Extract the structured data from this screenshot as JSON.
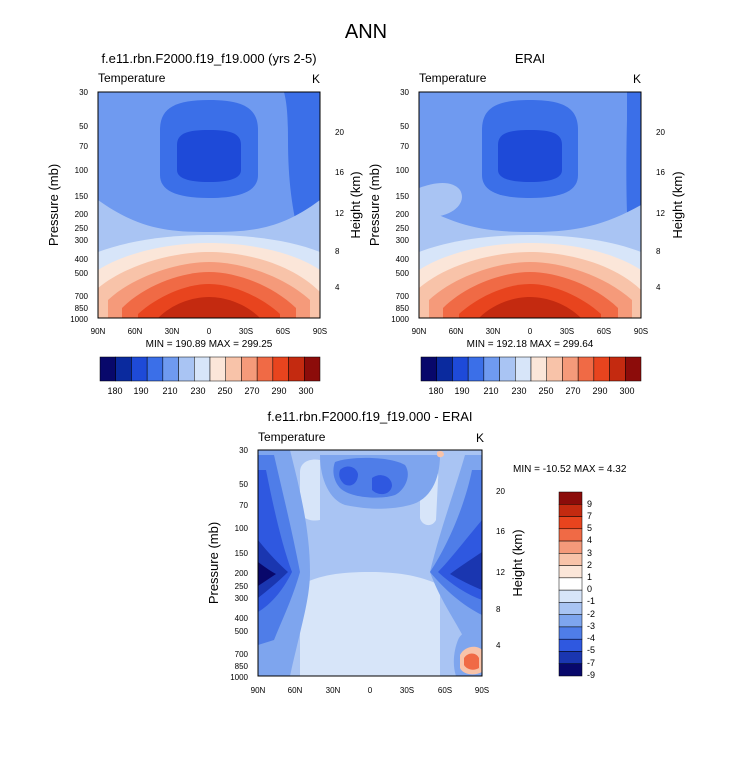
{
  "page_title": "ANN",
  "chart_data": [
    {
      "type": "heatmap",
      "title": "f.e11.rbn.F2000.f19_f19.000 (yrs 2-5)",
      "subtitle_left": "Temperature",
      "units": "K",
      "ylabel": "Pressure (mb)",
      "ylabel_right": "Height (km)",
      "x_ticks": [
        "90N",
        "60N",
        "30N",
        "0",
        "30S",
        "60S",
        "90S"
      ],
      "y_ticks": [
        "30",
        "50",
        "70",
        "100",
        "150",
        "200",
        "250",
        "300",
        "400",
        "500",
        "700",
        "850",
        "1000"
      ],
      "y_ticks_right": [
        "20",
        "16",
        "12",
        "8",
        "4"
      ],
      "stats_text": "MIN = 190.89  MAX = 299.25",
      "min": 190.89,
      "max": 299.25,
      "colorbar_labels": [
        "180",
        "190",
        "210",
        "230",
        "250",
        "270",
        "290",
        "300"
      ]
    },
    {
      "type": "heatmap",
      "title": "ERAI",
      "subtitle_left": "Temperature",
      "units": "K",
      "ylabel": "Pressure (mb)",
      "ylabel_right": "Height (km)",
      "x_ticks": [
        "90N",
        "60N",
        "30N",
        "0",
        "30S",
        "60S",
        "90S"
      ],
      "y_ticks": [
        "30",
        "50",
        "70",
        "100",
        "150",
        "200",
        "250",
        "300",
        "400",
        "500",
        "700",
        "850",
        "1000"
      ],
      "y_ticks_right": [
        "20",
        "16",
        "12",
        "8",
        "4"
      ],
      "stats_text": "MIN = 192.18  MAX = 299.64",
      "min": 192.18,
      "max": 299.64,
      "colorbar_labels": [
        "180",
        "190",
        "210",
        "230",
        "250",
        "270",
        "290",
        "300"
      ]
    },
    {
      "type": "heatmap",
      "title": "f.e11.rbn.F2000.f19_f19.000 - ERAI",
      "subtitle_left": "Temperature",
      "units": "K",
      "ylabel": "Pressure (mb)",
      "ylabel_right": "Height (km)",
      "x_ticks": [
        "90N",
        "60N",
        "30N",
        "0",
        "30S",
        "60S",
        "90S"
      ],
      "y_ticks": [
        "30",
        "50",
        "70",
        "100",
        "150",
        "200",
        "250",
        "300",
        "400",
        "500",
        "700",
        "850",
        "1000"
      ],
      "y_ticks_right": [
        "20",
        "16",
        "12",
        "8",
        "4"
      ],
      "stats_text": "MIN = -10.52  MAX =  4.32",
      "min": -10.52,
      "max": 4.32,
      "colorbar_labels": [
        "9",
        "7",
        "5",
        "4",
        "3",
        "2",
        "1",
        "0",
        "-1",
        "-2",
        "-3",
        "-4",
        "-5",
        "-7",
        "-9"
      ]
    }
  ],
  "colors": {
    "abs_scale": [
      "#08086b",
      "#0a2a9e",
      "#1e4ad8",
      "#3b6fe8",
      "#6f9af0",
      "#a9c4f3",
      "#d7e5f9",
      "#fbe6d9",
      "#f8c3a9",
      "#f59a7a",
      "#f06a45",
      "#e8441e",
      "#c42a10",
      "#8c0c0a"
    ],
    "diff_scale": [
      "#8c0c0a",
      "#c42a10",
      "#e8441e",
      "#f06a45",
      "#f59a7a",
      "#f8c3a9",
      "#fbe6d9",
      "#ffffff",
      "#d7e5f9",
      "#a9c4f3",
      "#7ea5ee",
      "#4f7de8",
      "#2f58e0",
      "#1a36b0",
      "#08086b"
    ]
  }
}
